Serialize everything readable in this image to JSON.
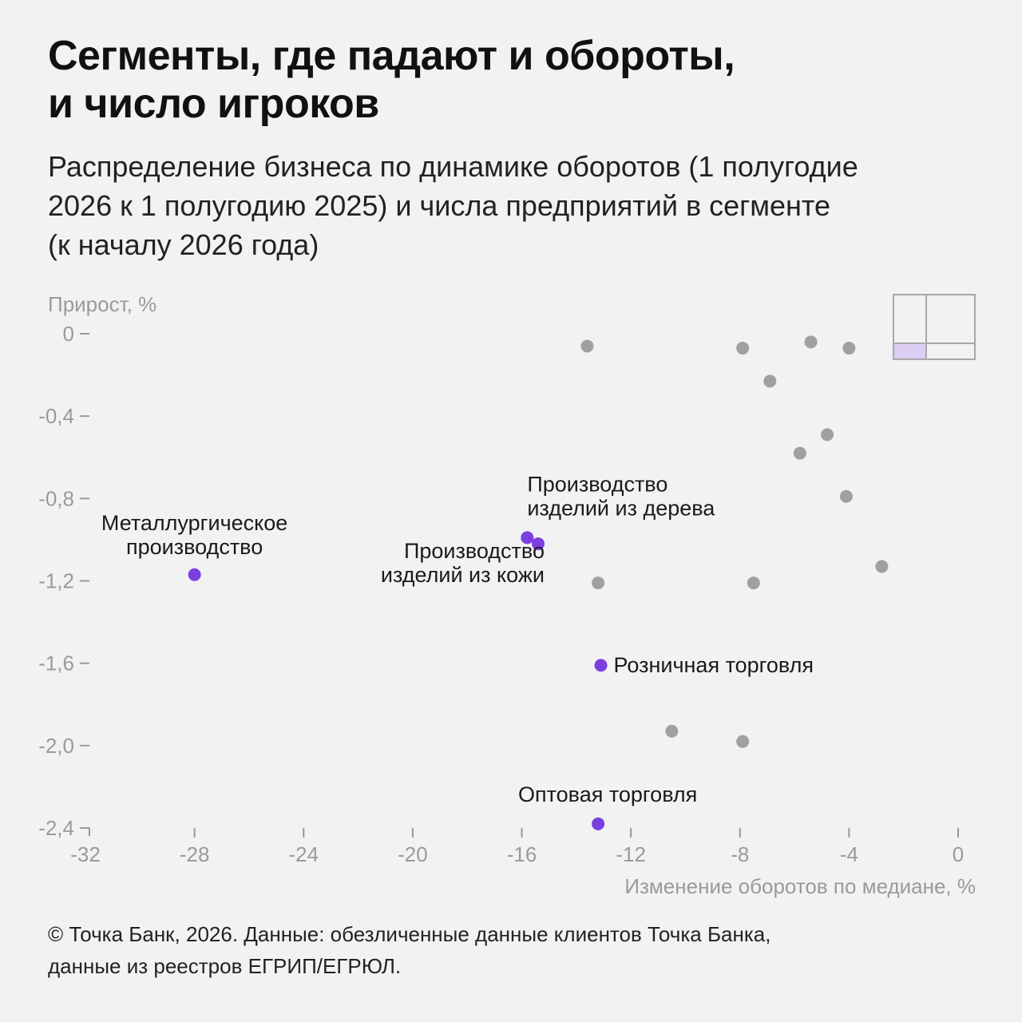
{
  "header": {
    "title_lines": [
      "Сегменты, где падают и обороты,",
      "и число игроков"
    ],
    "subtitle_lines": [
      "Распределение бизнеса по динамике оборотов (1 полугодие",
      "2026 к 1 полугодию 2025) и числа предприятий в сегменте",
      "(к началу 2026 года)"
    ]
  },
  "chart_data": {
    "type": "scatter",
    "title": "Сегменты, где падают и обороты, и число игроков",
    "xlabel": "Изменение оборотов по медиане, %",
    "ylabel": "Прирост, %",
    "xlim": [
      -32,
      0
    ],
    "ylim": [
      -2.4,
      0
    ],
    "xticks": [
      -32,
      -28,
      -24,
      -20,
      -16,
      -12,
      -8,
      -4,
      0
    ],
    "xtick_labels": [
      "-32",
      "-28",
      "-24",
      "-20",
      "-16",
      "-12",
      "-8",
      "-4",
      "0"
    ],
    "yticks": [
      0,
      -0.4,
      -0.8,
      -1.2,
      -1.6,
      -2.0,
      -2.4
    ],
    "ytick_labels": [
      "0",
      "-0,4",
      "-0,8",
      "-1,2",
      "-1,6",
      "-2,0",
      "-2,4"
    ],
    "grid": false,
    "colors": {
      "highlight": "#7b3fe0",
      "other": "#a0a0a0",
      "axis": "#9a9a9a"
    },
    "series": [
      {
        "role": "highlighted",
        "points": [
          {
            "x": -28.0,
            "y": -1.17,
            "label_lines": [
              "Металлургическое",
              "производство"
            ]
          },
          {
            "x": -15.8,
            "y": -0.99,
            "label_lines": [
              "Производство",
              "изделий из дерева"
            ]
          },
          {
            "x": -15.4,
            "y": -1.02,
            "label_lines": [
              "Производство",
              "изделий из кожи"
            ]
          },
          {
            "x": -13.1,
            "y": -1.61,
            "label_lines": [
              "Розничная торговля"
            ]
          },
          {
            "x": -13.2,
            "y": -2.38,
            "label_lines": [
              "Оптовая торговля"
            ]
          }
        ]
      },
      {
        "role": "other",
        "points": [
          {
            "x": -13.6,
            "y": -0.06
          },
          {
            "x": -7.9,
            "y": -0.07
          },
          {
            "x": -5.4,
            "y": -0.04
          },
          {
            "x": -4.0,
            "y": -0.07
          },
          {
            "x": -6.9,
            "y": -0.23
          },
          {
            "x": -4.8,
            "y": -0.49
          },
          {
            "x": -5.8,
            "y": -0.58
          },
          {
            "x": -4.1,
            "y": -0.79
          },
          {
            "x": -2.8,
            "y": -1.13
          },
          {
            "x": -13.2,
            "y": -1.21
          },
          {
            "x": -7.5,
            "y": -1.21
          },
          {
            "x": -10.5,
            "y": -1.93
          },
          {
            "x": -7.9,
            "y": -1.98
          }
        ]
      }
    ]
  },
  "footer": {
    "lines": [
      "© Точка Банк, 2026. Данные: обезличенные данные клиентов Точка Банка,",
      "данные из реестров ЕГРИП/ЕГРЮЛ."
    ]
  }
}
